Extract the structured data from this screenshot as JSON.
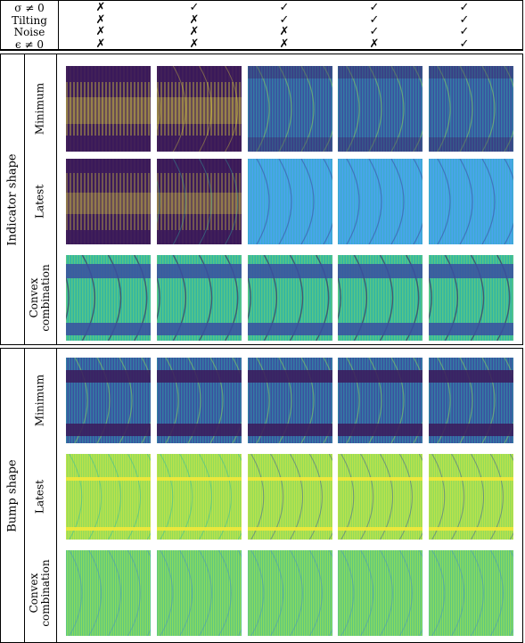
{
  "header": {
    "rows": [
      {
        "label": "σ ≠ 0",
        "marks": [
          "✗",
          "✓",
          "✓",
          "✓",
          "✓"
        ]
      },
      {
        "label": "Tilting",
        "marks": [
          "✗",
          "✗",
          "✓",
          "✓",
          "✓"
        ]
      },
      {
        "label": "Noise",
        "marks": [
          "✗",
          "✗",
          "✗",
          "✓",
          "✓"
        ]
      },
      {
        "label": "ϵ ≠ 0",
        "marks": [
          "✗",
          "✗",
          "✗",
          "✗",
          "✓"
        ]
      }
    ]
  },
  "sections": [
    {
      "title": "Indicator shape",
      "rows": [
        "Minimum",
        "Latest",
        "Convex combination"
      ],
      "row_label_lines": [
        [
          "Minimum"
        ],
        [
          "Latest"
        ],
        [
          "Convex",
          "combination"
        ]
      ]
    },
    {
      "title": "Bump shape",
      "rows": [
        "Minimum",
        "Latest",
        "Convex combination"
      ],
      "row_label_lines": [
        [
          "Minimum"
        ],
        [
          "Latest"
        ],
        [
          "Convex",
          "combination"
        ]
      ]
    }
  ],
  "colors": {
    "dark": "#3b1a5a",
    "deep_blue": "#3a4fa0",
    "blue": "#3d7fd6",
    "teal": "#2fb5a6",
    "green": "#8fdc5a",
    "yellow": "#f2e83a",
    "light_blue": "#4aa3f0"
  }
}
